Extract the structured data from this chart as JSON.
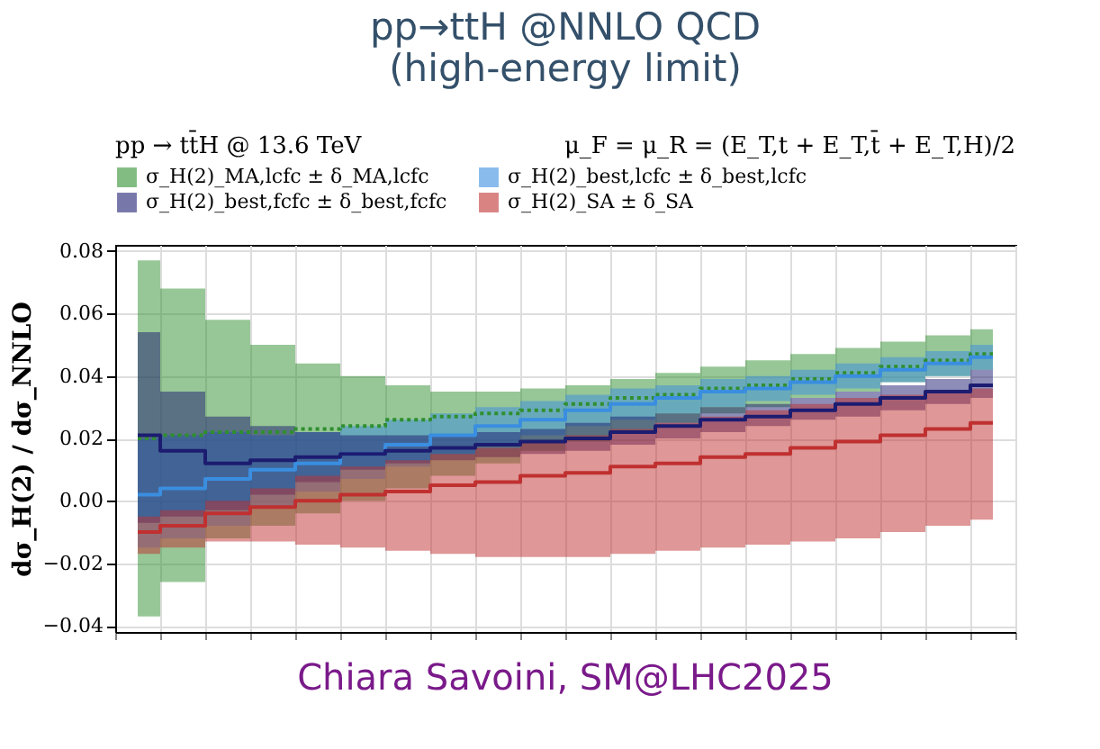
{
  "chart_data": {
    "type": "step",
    "title": [
      "pp→ttH @NNLO QCD",
      "(high-energy limit)"
    ],
    "ylabel": "dσ_H(2) / dσ_NNLO",
    "annotations": [
      "pp → tt̄H @ 13.6 TeV",
      "μ_F = μ_R = (E_T,t + E_T,t̄ + E_T,H)/2",
      "Chiara Savoini, SM@LHC2025"
    ],
    "categories": [
      null,
      null,
      null,
      null,
      null,
      null,
      null,
      null,
      null,
      null,
      null,
      null,
      null,
      null,
      null,
      null,
      null,
      null,
      null,
      null
    ],
    "ylim": [
      -0.042,
      0.082
    ],
    "yticks": [
      {
        "value": -0.04,
        "label": "−0.04"
      },
      {
        "value": -0.02,
        "label": "−0.02"
      },
      {
        "value": 0,
        "label": "0.00"
      },
      {
        "value": 0.02,
        "label": "0.02"
      },
      {
        "value": 0.04,
        "label": "0.04"
      },
      {
        "value": 0.06,
        "label": "0.06"
      },
      {
        "value": 0.08,
        "label": "0.08"
      }
    ],
    "grid": true,
    "legend": "top",
    "tick_labels": "y",
    "series": [
      {
        "name": "σ_H(2)_MA,lcfc ± δ_MA,lcfc",
        "color": "#2f8f2f",
        "line_style": "dotted",
        "values": [
          0.02,
          0.021,
          0.022,
          0.022,
          0.023,
          0.024,
          0.026,
          0.027,
          0.028,
          0.029,
          0.031,
          0.033,
          0.034,
          0.036,
          0.037,
          0.039,
          0.041,
          0.043,
          0.045,
          0.047
        ],
        "lower": [
          -0.037,
          -0.026,
          -0.012,
          -0.008,
          -0.004,
          0.0,
          0.004,
          0.008,
          0.012,
          0.016,
          0.019,
          0.022,
          0.025,
          0.028,
          0.03,
          0.033,
          0.035,
          0.038,
          0.04,
          0.042
        ],
        "upper": [
          0.077,
          0.068,
          0.058,
          0.05,
          0.044,
          0.04,
          0.037,
          0.035,
          0.035,
          0.036,
          0.037,
          0.039,
          0.041,
          0.043,
          0.045,
          0.047,
          0.049,
          0.051,
          0.053,
          0.055
        ]
      },
      {
        "name": "σ_H(2)_best,lcfc ± δ_best,lcfc",
        "color": "#3a8ee0",
        "line_style": "solid",
        "values": [
          0.002,
          0.004,
          0.007,
          0.01,
          0.012,
          0.015,
          0.018,
          0.021,
          0.024,
          0.026,
          0.029,
          0.031,
          0.033,
          0.035,
          0.036,
          0.038,
          0.04,
          0.042,
          0.044,
          0.046
        ],
        "lower": [
          -0.015,
          -0.012,
          -0.008,
          -0.002,
          0.003,
          0.007,
          0.011,
          0.015,
          0.018,
          0.021,
          0.024,
          0.026,
          0.028,
          0.03,
          0.032,
          0.034,
          0.036,
          0.038,
          0.04,
          0.042
        ],
        "upper": [
          0.02,
          0.021,
          0.022,
          0.021,
          0.022,
          0.024,
          0.026,
          0.028,
          0.03,
          0.032,
          0.034,
          0.036,
          0.037,
          0.039,
          0.04,
          0.042,
          0.044,
          0.046,
          0.048,
          0.05
        ]
      },
      {
        "name": "σ_H(2)_best,fcfc ± δ_best,fcfc",
        "color": "#1c1c70",
        "line_style": "solid",
        "values": [
          0.021,
          0.016,
          0.012,
          0.013,
          0.014,
          0.015,
          0.016,
          0.017,
          0.018,
          0.019,
          0.02,
          0.022,
          0.024,
          0.026,
          0.027,
          0.029,
          0.031,
          0.033,
          0.035,
          0.037
        ],
        "lower": [
          -0.007,
          -0.005,
          -0.003,
          0.002,
          0.006,
          0.01,
          0.012,
          0.013,
          0.014,
          0.015,
          0.016,
          0.018,
          0.02,
          0.022,
          0.024,
          0.026,
          0.027,
          0.029,
          0.031,
          0.033
        ],
        "upper": [
          0.054,
          0.035,
          0.027,
          0.024,
          0.022,
          0.021,
          0.021,
          0.021,
          0.022,
          0.023,
          0.025,
          0.027,
          0.028,
          0.03,
          0.031,
          0.033,
          0.035,
          0.037,
          0.039,
          0.042
        ]
      },
      {
        "name": "σ_H(2)_SA ± δ_SA",
        "color": "#c03030",
        "line_style": "solid",
        "values": [
          -0.01,
          -0.008,
          -0.004,
          -0.002,
          0.0,
          0.002,
          0.003,
          0.005,
          0.006,
          0.008,
          0.009,
          0.011,
          0.012,
          0.014,
          0.015,
          0.017,
          0.019,
          0.021,
          0.023,
          0.025
        ],
        "lower": [
          -0.017,
          -0.015,
          -0.013,
          -0.013,
          -0.014,
          -0.015,
          -0.016,
          -0.017,
          -0.018,
          -0.018,
          -0.018,
          -0.017,
          -0.016,
          -0.015,
          -0.014,
          -0.013,
          -0.012,
          -0.01,
          -0.008,
          -0.006
        ],
        "upper": [
          -0.005,
          -0.003,
          0.0,
          0.004,
          0.008,
          0.011,
          0.013,
          0.015,
          0.017,
          0.019,
          0.021,
          0.023,
          0.025,
          0.027,
          0.029,
          0.031,
          0.033,
          0.034,
          0.035,
          0.036
        ]
      }
    ]
  }
}
